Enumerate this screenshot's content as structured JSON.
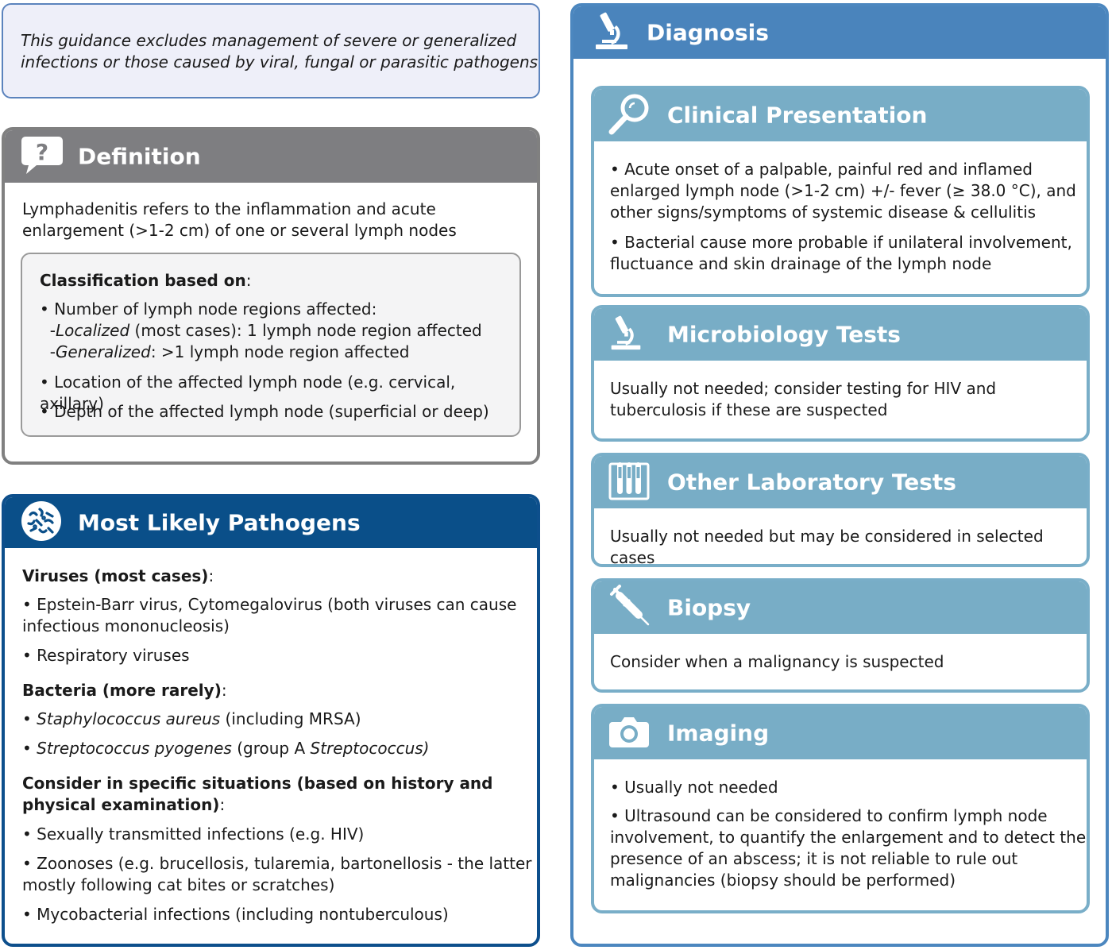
{
  "note": {
    "text_line1": "This guidance excludes management of severe or generalized",
    "text_line2": "infections or those caused by viral, fungal or parasitic pathogens"
  },
  "definition": {
    "title": "Definition",
    "icon": "question-bubble-icon",
    "intro_line1": "Lymphadenitis refers to the inflammation and acute",
    "intro_line2": "enlargement (>1-2 cm) of one or several lymph nodes",
    "classification": {
      "heading": "Classification based on",
      "heading_suffix": ":",
      "item1": "• Number of lymph node regions affected:",
      "item1_sub1_dash": "-",
      "item1_sub1_term": "Localized",
      "item1_sub1_rest": " (most cases): 1 lymph node region affected",
      "item1_sub2_dash": "-",
      "item1_sub2_term": "Generalized",
      "item1_sub2_rest": ": >1 lymph node region affected",
      "item2": "• Location of the affected lymph node (e.g. cervical, axillary)",
      "item3": "• Depth of the affected lymph node (superficial or deep)"
    }
  },
  "pathogens": {
    "title": "Most Likely Pathogens",
    "icon": "bacteria-icon",
    "viruses_heading": "Viruses (most cases)",
    "colon": ":",
    "virus1_line1": "• Epstein-Barr virus, Cytomegalovirus (both viruses can cause",
    "virus1_line2": "infectious mononucleosis)",
    "virus2": "• Respiratory viruses",
    "bacteria_heading": "Bacteria (more rarely)",
    "bullet": "• ",
    "bact1_name": "Staphylococcus aureus",
    "bact1_rest": " (including MRSA)",
    "bact2_name": "Streptococcus pyogenes",
    "bact2_mid": " (group A ",
    "bact2_name2": "Streptococcus)",
    "specific_heading_line1": "Consider in specific situations (based on history and",
    "specific_heading_line2": "physical examination)",
    "spec1": "• Sexually transmitted infections (e.g. HIV)",
    "spec2_line1": "• Zoonoses (e.g. brucellosis, tularemia, bartonellosis - the latter",
    "spec2_line2": "mostly following cat bites or scratches)",
    "spec3": "• Mycobacterial infections (including nontuberculous)"
  },
  "diagnosis": {
    "title": "Diagnosis",
    "icon": "microscope-icon",
    "clinical": {
      "title": "Clinical Presentation",
      "icon": "magnifier-icon",
      "b1_line1": "• Acute onset of a palpable, painful red and inflamed",
      "b1_line2": "enlarged lymph node (>1-2 cm) +/- fever (≥ 38.0 °C), and",
      "b1_line3": "other signs/symptoms of systemic disease & cellulitis",
      "b2_line1": "• Bacterial cause more probable if unilateral involvement,",
      "b2_line2": "fluctuance and skin drainage of the lymph node"
    },
    "micro": {
      "title": "Microbiology Tests",
      "icon": "microscope-icon",
      "line1": "Usually not needed; consider testing for HIV and",
      "line2": "tuberculosis if these are suspected"
    },
    "lab": {
      "title": "Other Laboratory Tests",
      "icon": "test-tubes-icon",
      "line1": "Usually not needed but may be considered in selected cases"
    },
    "biopsy": {
      "title": "Biopsy",
      "icon": "syringe-icon",
      "line1": "Consider when a malignancy is suspected"
    },
    "imaging": {
      "title": "Imaging",
      "icon": "camera-icon",
      "b1": "• Usually not needed",
      "b2_line1": "• Ultrasound can be considered to confirm lymph node",
      "b2_line2": "involvement, to quantify the enlargement and to detect the",
      "b2_line3": "presence of an abscess; it is not reliable to rule out",
      "b2_line4": "malignancies (biopsy should be performed)"
    }
  },
  "colors": {
    "definition_header": "#7e7e81",
    "pathogens_header": "#0a4f89",
    "diagnosis_header": "#4a84bc",
    "subsection_header": "#78adc6",
    "note_background": "#eeeff9"
  }
}
